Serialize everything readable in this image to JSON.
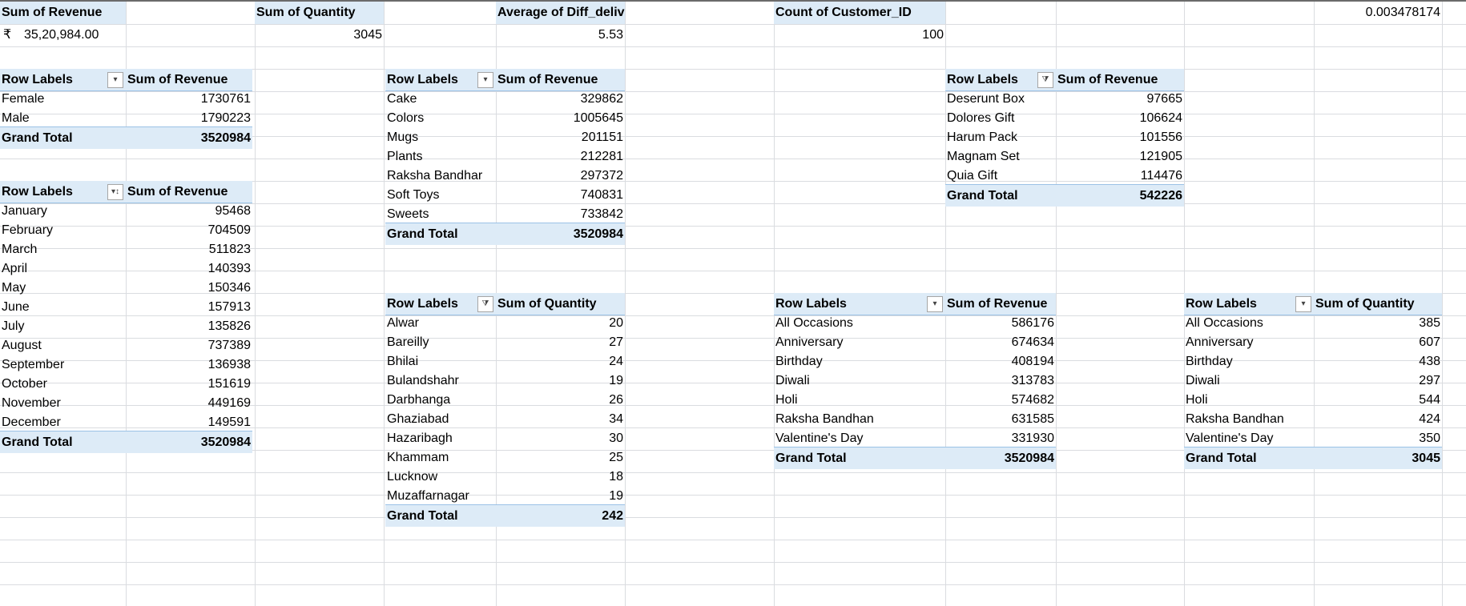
{
  "summary": {
    "revenue_label": "Sum of Revenue",
    "revenue_currency": "₹",
    "revenue_value": "35,20,984.00",
    "quantity_label": "Sum of Quantity",
    "quantity_value": "3045",
    "avg_label": "Average of Diff_delivery_order",
    "avg_value": "5.53",
    "count_label": "Count of Customer_ID",
    "count_value": "100",
    "extra_value": "0.003478174"
  },
  "icons": {
    "filter": "dropdown-filter-icon",
    "sort": "sort-filter-icon",
    "filtered": "filtered-icon"
  },
  "pivot_gender": {
    "h1": "Row Labels",
    "h2": "Sum of Revenue",
    "rows": [
      {
        "label": "Female",
        "value": "1730761"
      },
      {
        "label": "Male",
        "value": "1790223"
      }
    ],
    "total_label": "Grand Total",
    "total_value": "3520984"
  },
  "pivot_month": {
    "h1": "Row Labels",
    "h2": "Sum of Revenue",
    "rows": [
      {
        "label": "January",
        "value": "95468"
      },
      {
        "label": "February",
        "value": "704509"
      },
      {
        "label": "March",
        "value": "511823"
      },
      {
        "label": "April",
        "value": "140393"
      },
      {
        "label": "May",
        "value": "150346"
      },
      {
        "label": "June",
        "value": "157913"
      },
      {
        "label": "July",
        "value": "135826"
      },
      {
        "label": "August",
        "value": "737389"
      },
      {
        "label": "September",
        "value": "136938"
      },
      {
        "label": "October",
        "value": "151619"
      },
      {
        "label": "November",
        "value": "449169"
      },
      {
        "label": "December",
        "value": "149591"
      }
    ],
    "total_label": "Grand Total",
    "total_value": "3520984"
  },
  "pivot_category": {
    "h1": "Row Labels",
    "h2": "Sum of Revenue",
    "rows": [
      {
        "label": "Cake",
        "value": "329862"
      },
      {
        "label": "Colors",
        "value": "1005645"
      },
      {
        "label": "Mugs",
        "value": "201151"
      },
      {
        "label": "Plants",
        "value": "212281"
      },
      {
        "label": "Raksha Bandhar",
        "value": "297372"
      },
      {
        "label": "Soft Toys",
        "value": "740831"
      },
      {
        "label": "Sweets",
        "value": "733842"
      }
    ],
    "total_label": "Grand Total",
    "total_value": "3520984"
  },
  "pivot_city": {
    "h1": "Row Labels",
    "h2": "Sum of Quantity",
    "rows": [
      {
        "label": "Alwar",
        "value": "20"
      },
      {
        "label": "Bareilly",
        "value": "27"
      },
      {
        "label": "Bhilai",
        "value": "24"
      },
      {
        "label": "Bulandshahr",
        "value": "19"
      },
      {
        "label": "Darbhanga",
        "value": "26"
      },
      {
        "label": "Ghaziabad",
        "value": "34"
      },
      {
        "label": "Hazaribagh",
        "value": "30"
      },
      {
        "label": "Khammam",
        "value": "25"
      },
      {
        "label": "Lucknow",
        "value": "18"
      },
      {
        "label": "Muzaffarnagar",
        "value": "19"
      }
    ],
    "total_label": "Grand Total",
    "total_value": "242"
  },
  "pivot_product": {
    "h1": "Row Labels",
    "h2": "Sum of Revenue",
    "rows": [
      {
        "label": "Deserunt Box",
        "value": "97665"
      },
      {
        "label": "Dolores Gift",
        "value": "106624"
      },
      {
        "label": "Harum Pack",
        "value": "101556"
      },
      {
        "label": "Magnam Set",
        "value": "121905"
      },
      {
        "label": "Quia Gift",
        "value": "114476"
      }
    ],
    "total_label": "Grand Total",
    "total_value": "542226"
  },
  "pivot_occasion_rev": {
    "h1": "Row Labels",
    "h2": "Sum of Revenue",
    "rows": [
      {
        "label": "All Occasions",
        "value": "586176"
      },
      {
        "label": "Anniversary",
        "value": "674634"
      },
      {
        "label": "Birthday",
        "value": "408194"
      },
      {
        "label": "Diwali",
        "value": "313783"
      },
      {
        "label": "Holi",
        "value": "574682"
      },
      {
        "label": "Raksha Bandhan",
        "value": "631585"
      },
      {
        "label": "Valentine's Day",
        "value": "331930"
      }
    ],
    "total_label": "Grand Total",
    "total_value": "3520984"
  },
  "pivot_occasion_qty": {
    "h1": "Row Labels",
    "h2": "Sum of Quantity",
    "rows": [
      {
        "label": "All Occasions",
        "value": "385"
      },
      {
        "label": "Anniversary",
        "value": "607"
      },
      {
        "label": "Birthday",
        "value": "438"
      },
      {
        "label": "Diwali",
        "value": "297"
      },
      {
        "label": "Holi",
        "value": "544"
      },
      {
        "label": "Raksha Bandhan",
        "value": "424"
      },
      {
        "label": "Valentine's Day",
        "value": "350"
      }
    ],
    "total_label": "Grand Total",
    "total_value": "3045"
  }
}
